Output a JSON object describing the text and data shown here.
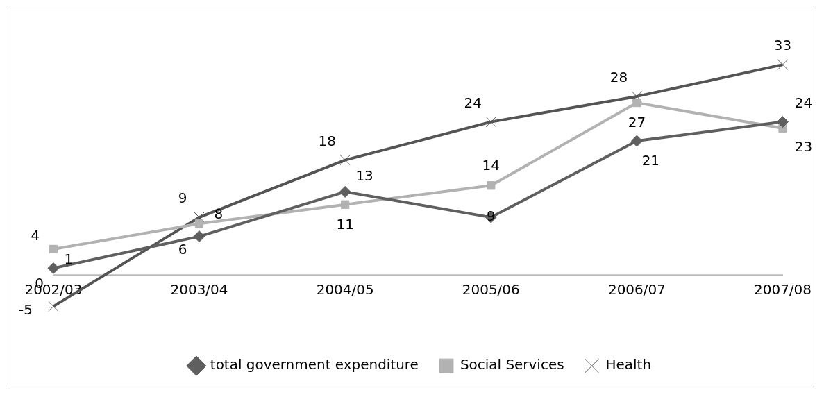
{
  "chart_data": {
    "type": "line",
    "categories": [
      "2002/03",
      "2003/04",
      "2004/05",
      "2005/06",
      "2006/07",
      "2007/08"
    ],
    "series": [
      {
        "name": "total government expenditure",
        "color": "#5f5f5f",
        "marker": "diamond",
        "values": [
          1,
          6,
          13,
          9,
          21,
          24
        ]
      },
      {
        "name": "Social Services",
        "color": "#b2b2b2",
        "marker": "square",
        "values": [
          4,
          8,
          11,
          14,
          27,
          23
        ]
      },
      {
        "name": "Health",
        "color": "#545454",
        "marker": "cross",
        "values": [
          -5,
          9,
          18,
          24,
          28,
          33
        ]
      }
    ],
    "annotations": [
      "0"
    ],
    "grid": false,
    "legend": "bottom",
    "data_labels": true
  }
}
